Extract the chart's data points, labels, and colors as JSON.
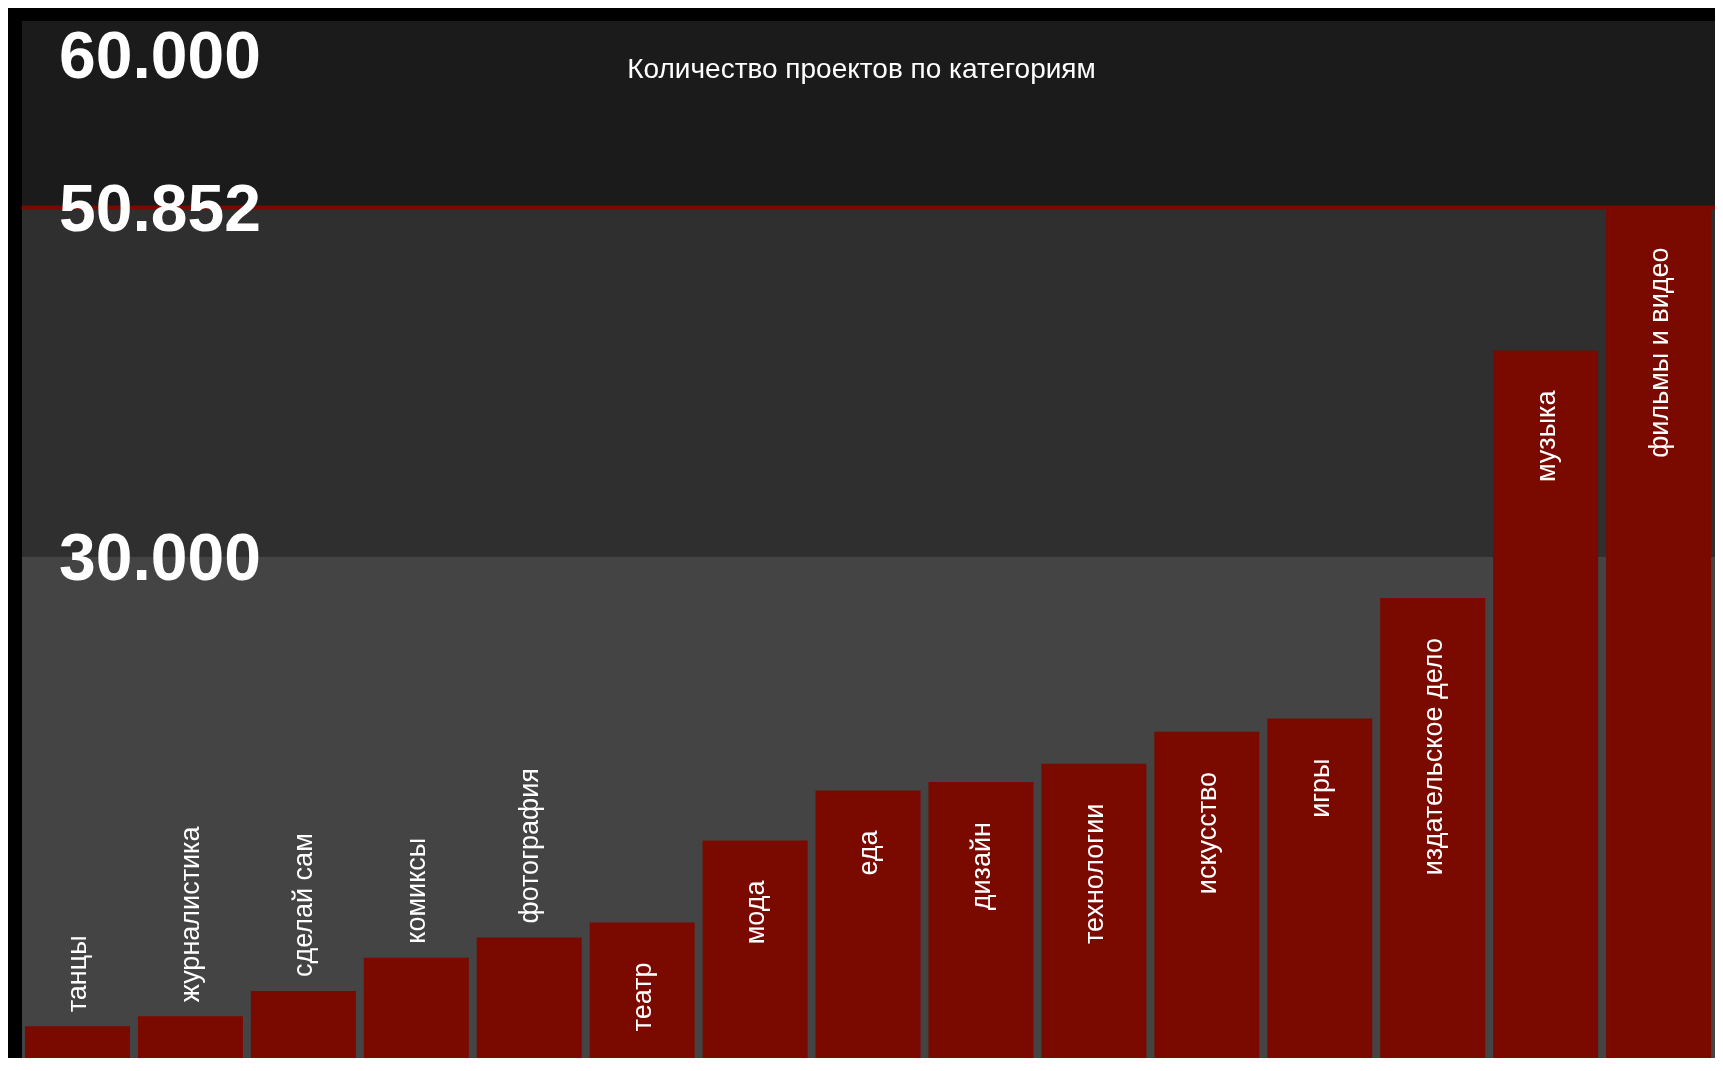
{
  "chart_data": {
    "type": "bar",
    "title": "Количество проектов по категориям",
    "categories": [
      "танцы",
      "журналистика",
      "сделай сам",
      "комиксы",
      "фотография",
      "театр",
      "мода",
      "еда",
      "дизайн",
      "технологии",
      "искусство",
      "игры",
      "издательское дело",
      "музыка",
      "фильмы и видео"
    ],
    "values": [
      1900,
      2500,
      4000,
      6000,
      7200,
      8100,
      13000,
      16000,
      16500,
      17600,
      19500,
      20300,
      27500,
      42300,
      50852
    ],
    "color": "#7a0a00",
    "ylim": [
      0,
      62000
    ],
    "yticks": [
      {
        "value": 30000,
        "label": "30.000"
      },
      {
        "value": 50852,
        "label": "50.852"
      },
      {
        "value": 60000,
        "label": "60.000"
      }
    ],
    "bands": [
      {
        "axis": "y",
        "from": 0,
        "to": 30000,
        "color": "#444444"
      },
      {
        "axis": "y",
        "from": 30000,
        "to": 50852,
        "color": "#2f2f2f"
      },
      {
        "axis": "y",
        "from": 50852,
        "to": 62000,
        "color": "#1b1b1b"
      }
    ],
    "ref_lines": [
      {
        "axis": "y",
        "value": 50852,
        "color": "#7a0a00"
      }
    ]
  }
}
